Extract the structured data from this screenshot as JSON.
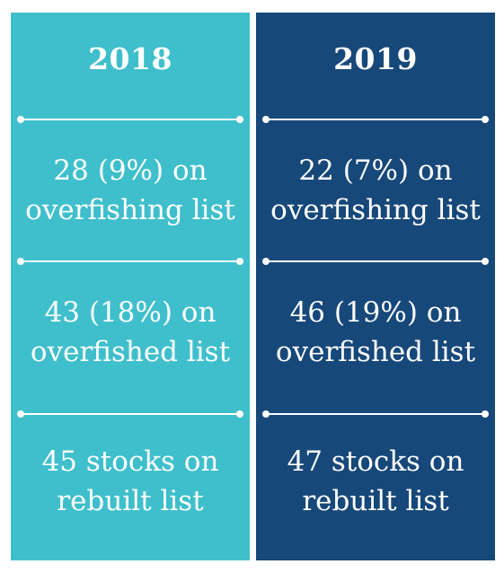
{
  "colors": {
    "left_bg": "#3fbfcc",
    "right_bg": "#17487a",
    "text": "#ffffff"
  },
  "columns": [
    {
      "year": "2018",
      "stats": [
        {
          "line1": "28 (9%) on",
          "line2": "overfishing list"
        },
        {
          "line1": "43 (18%) on",
          "line2": "overfished list"
        },
        {
          "line1": "45 stocks on",
          "line2": "rebuilt list"
        }
      ]
    },
    {
      "year": "2019",
      "stats": [
        {
          "line1": "22 (7%) on",
          "line2": "overfishing list"
        },
        {
          "line1": "46 (19%) on",
          "line2": "overfished list"
        },
        {
          "line1": "47 stocks on",
          "line2": "rebuilt list"
        }
      ]
    }
  ]
}
